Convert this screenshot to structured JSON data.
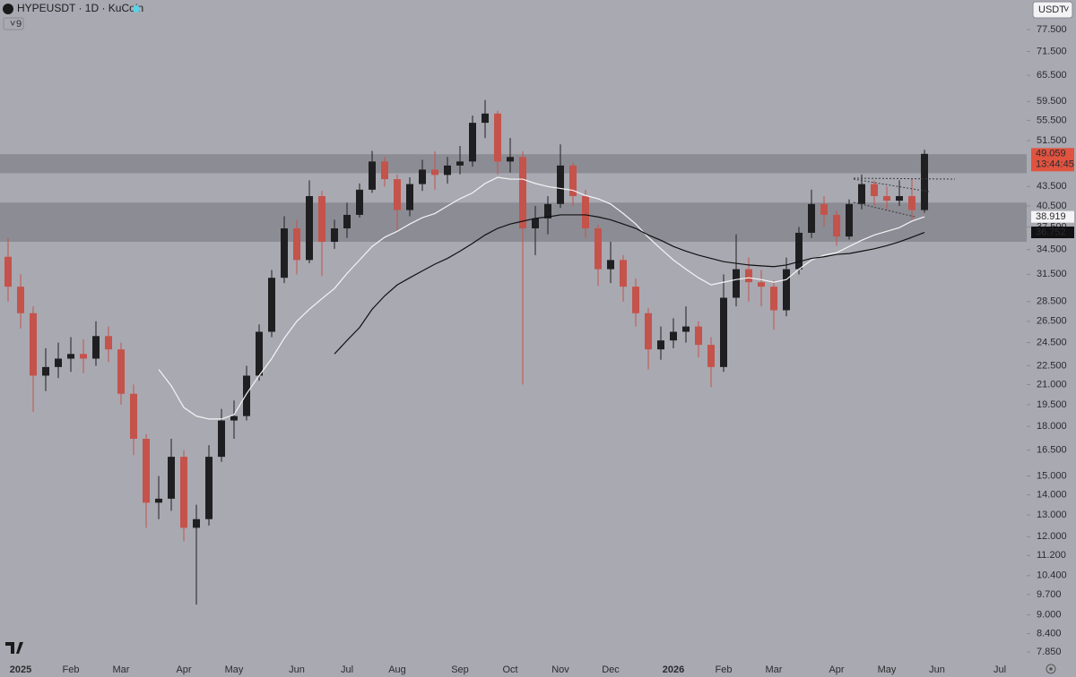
{
  "chart_data": {
    "type": "candlestick",
    "title": "HYPEUSDT · 1D · KuCoin",
    "indicator_count": "9",
    "currency": "USDT",
    "countdown": "13:44:45",
    "log_scale": true,
    "up_color": "#1f1f22",
    "down_color": "#c4534c",
    "background": "#a9a9b1",
    "categories": [
      null,
      "2025",
      null,
      null,
      null,
      "Feb",
      null,
      null,
      null,
      "Mar",
      null,
      null,
      null,
      null,
      "Apr",
      null,
      null,
      null,
      "May",
      null,
      null,
      null,
      null,
      "Jun",
      null,
      null,
      null,
      "Jul",
      null,
      null,
      null,
      "Aug",
      null,
      null,
      null,
      null,
      "Sep",
      null,
      null,
      null,
      "Oct",
      null,
      null,
      null,
      "Nov",
      null,
      null,
      null,
      "Dec",
      null,
      null,
      null,
      null,
      "2026",
      null,
      null,
      null,
      "Feb",
      null,
      null,
      null,
      "Mar",
      null,
      null,
      null,
      null,
      "Apr",
      null,
      null,
      null,
      "May",
      null,
      null,
      null,
      "Jun",
      null,
      null,
      null,
      null,
      "Jul",
      null,
      null
    ],
    "open": [
      33.6,
      30.1,
      27.3,
      21.7,
      22.4,
      23.1,
      23.5,
      23.1,
      25.1,
      23.9,
      20.3,
      17.2,
      13.6,
      13.8,
      16.1,
      12.4,
      12.8,
      16.1,
      18.4,
      18.7,
      21.7,
      25.5,
      31.1,
      37.3,
      33.2,
      42.0,
      35.5,
      37.3,
      39.2,
      43.0,
      47.7,
      44.7,
      39.9,
      43.9,
      46.3,
      45.4,
      47.0,
      47.7,
      55.0,
      56.9,
      47.7,
      48.5,
      37.3,
      38.7,
      40.8,
      47.0,
      42.0,
      37.3,
      32.1,
      33.2,
      30.1,
      27.3,
      23.9,
      24.7,
      25.5,
      26.0,
      24.3,
      22.4,
      28.9,
      32.1,
      30.6,
      30.1,
      27.6,
      32.1,
      36.7,
      40.8,
      39.2,
      36.2,
      40.8,
      43.9,
      42.0,
      41.3,
      42.0,
      39.9,
      null,
      null,
      null,
      null,
      null,
      null,
      null,
      null
    ],
    "high": [
      36.0,
      31.5,
      28.0,
      24.0,
      24.5,
      25.0,
      24.8,
      26.5,
      26.0,
      24.5,
      21.0,
      17.5,
      15.0,
      17.2,
      16.5,
      13.5,
      16.8,
      19.2,
      19.8,
      22.5,
      26.2,
      32.0,
      39.0,
      38.5,
      44.5,
      42.8,
      38.5,
      41.0,
      44.0,
      49.6,
      48.5,
      45.5,
      45.0,
      48.0,
      49.5,
      48.5,
      50.5,
      56.5,
      59.8,
      57.5,
      52.0,
      49.5,
      40.5,
      42.0,
      50.8,
      47.5,
      43.0,
      37.8,
      35.5,
      33.8,
      31.0,
      27.8,
      26.0,
      26.8,
      28.0,
      26.5,
      25.0,
      31.5,
      36.5,
      33.5,
      32.0,
      30.8,
      33.5,
      37.5,
      43.0,
      42.0,
      39.8,
      41.5,
      45.5,
      44.5,
      43.5,
      44.5,
      44.8,
      49.8,
      null,
      null,
      null,
      null,
      null,
      null,
      null,
      null
    ],
    "low": [
      28.5,
      25.8,
      19.0,
      20.5,
      21.5,
      22.0,
      21.9,
      22.5,
      22.8,
      19.5,
      16.2,
      12.4,
      12.8,
      13.2,
      11.8,
      9.35,
      12.5,
      15.8,
      17.2,
      18.4,
      21.3,
      25.0,
      30.5,
      31.5,
      32.8,
      31.3,
      34.6,
      36.0,
      38.8,
      42.5,
      43.5,
      36.8,
      39.0,
      42.8,
      43.0,
      44.0,
      45.5,
      46.8,
      52.0,
      45.5,
      45.8,
      21.0,
      33.8,
      36.5,
      40.2,
      40.5,
      36.0,
      30.2,
      30.5,
      28.5,
      26.0,
      22.2,
      23.0,
      24.0,
      24.5,
      23.2,
      20.8,
      22.0,
      28.0,
      28.5,
      28.0,
      25.7,
      27.0,
      31.5,
      36.0,
      37.5,
      35.0,
      35.8,
      40.0,
      40.5,
      40.0,
      40.5,
      38.5,
      39.5,
      null,
      null,
      null,
      null,
      null,
      null,
      null,
      null
    ],
    "close": [
      30.1,
      27.3,
      21.7,
      22.4,
      23.1,
      23.5,
      23.1,
      25.1,
      23.9,
      20.3,
      17.2,
      13.6,
      13.8,
      16.1,
      12.4,
      12.8,
      16.1,
      18.4,
      18.7,
      21.7,
      25.5,
      31.1,
      37.3,
      33.2,
      42.0,
      35.5,
      37.3,
      39.2,
      43.0,
      47.7,
      44.7,
      39.9,
      43.9,
      46.3,
      45.4,
      47.0,
      47.7,
      55.0,
      56.9,
      47.7,
      48.5,
      37.3,
      38.7,
      40.8,
      47.0,
      42.0,
      37.3,
      32.1,
      33.2,
      30.1,
      27.3,
      23.9,
      24.7,
      25.5,
      26.0,
      24.3,
      22.4,
      28.9,
      32.1,
      30.6,
      30.1,
      27.6,
      32.1,
      36.7,
      40.8,
      39.2,
      36.2,
      40.8,
      43.9,
      42.0,
      41.3,
      42.0,
      39.9,
      49.059,
      null,
      null,
      null,
      null,
      null,
      null,
      null,
      null
    ],
    "overlays": [
      {
        "color": "#f4f4f6",
        "values": [
          null,
          null,
          null,
          null,
          null,
          null,
          null,
          null,
          null,
          null,
          null,
          null,
          22.2,
          20.9,
          19.3,
          18.7,
          18.5,
          18.5,
          18.8,
          20.3,
          21.7,
          23.1,
          24.9,
          26.5,
          27.7,
          28.8,
          29.9,
          31.6,
          33.2,
          34.9,
          36.1,
          36.9,
          37.9,
          38.8,
          39.4,
          40.5,
          41.6,
          42.5,
          44.0,
          45.0,
          44.7,
          44.7,
          44.0,
          43.5,
          43.2,
          42.9,
          42.1,
          41.6,
          40.8,
          39.4,
          37.9,
          36.1,
          34.6,
          33.2,
          32.1,
          31.1,
          30.3,
          30.6,
          30.9,
          31.1,
          30.9,
          30.6,
          30.9,
          32.1,
          33.2,
          33.8,
          34.1,
          34.9,
          35.7,
          36.4,
          36.9,
          37.4,
          38.3,
          38.919,
          null,
          null,
          null,
          null,
          null,
          null,
          null,
          null
        ]
      },
      {
        "color": "#111114",
        "values": [
          null,
          null,
          null,
          null,
          null,
          null,
          null,
          null,
          null,
          null,
          null,
          null,
          null,
          null,
          null,
          null,
          null,
          null,
          null,
          null,
          null,
          null,
          null,
          null,
          null,
          null,
          23.5,
          24.7,
          25.9,
          27.7,
          29.1,
          30.3,
          31.1,
          31.9,
          32.7,
          33.4,
          34.3,
          35.3,
          36.4,
          37.3,
          37.9,
          38.3,
          38.7,
          38.9,
          39.2,
          39.2,
          39.2,
          38.9,
          38.5,
          37.9,
          37.3,
          36.4,
          35.7,
          34.9,
          34.3,
          33.8,
          33.4,
          33.0,
          32.8,
          32.6,
          32.5,
          32.4,
          32.6,
          33.0,
          33.4,
          33.6,
          33.9,
          34.0,
          34.3,
          34.6,
          35.0,
          35.5,
          36.1,
          36.752,
          null,
          null,
          null,
          null,
          null,
          null,
          null,
          null
        ]
      }
    ],
    "zones": [
      {
        "low": 45.7,
        "high": 49.0
      },
      {
        "low": 35.5,
        "high": 41.0
      }
    ],
    "ylim": [
      7.55,
      86.4
    ],
    "yticks": [
      {
        "value": 77.5,
        "label": "77.500"
      },
      {
        "value": 71.5,
        "label": "71.500"
      },
      {
        "value": 65.5,
        "label": "65.500"
      },
      {
        "value": 59.5,
        "label": "59.500"
      },
      {
        "value": 55.5,
        "label": "55.500"
      },
      {
        "value": 51.5,
        "label": "51.500"
      },
      {
        "value": 43.5,
        "label": "43.500"
      },
      {
        "value": 40.5,
        "label": "40.500"
      },
      {
        "value": 37.5,
        "label": "37.500"
      },
      {
        "value": 34.5,
        "label": "34.500"
      },
      {
        "value": 31.5,
        "label": "31.500"
      },
      {
        "value": 28.5,
        "label": "28.500"
      },
      {
        "value": 26.5,
        "label": "26.500"
      },
      {
        "value": 24.5,
        "label": "24.500"
      },
      {
        "value": 22.5,
        "label": "22.500"
      },
      {
        "value": 21,
        "label": "21.000"
      },
      {
        "value": 19.5,
        "label": "19.500"
      },
      {
        "value": 18,
        "label": "18.000"
      },
      {
        "value": 16.5,
        "label": "16.500"
      },
      {
        "value": 15,
        "label": "15.000"
      },
      {
        "value": 14,
        "label": "14.000"
      },
      {
        "value": 13,
        "label": "13.000"
      },
      {
        "value": 12,
        "label": "12.000"
      },
      {
        "value": 11.2,
        "label": "11.200"
      },
      {
        "value": 10.4,
        "label": "10.400"
      },
      {
        "value": 9.7,
        "label": "9.700"
      },
      {
        "value": 9,
        "label": "9.000"
      },
      {
        "value": 8.4,
        "label": "8.400"
      },
      {
        "value": 7.85,
        "label": "7.850"
      }
    ]
  }
}
